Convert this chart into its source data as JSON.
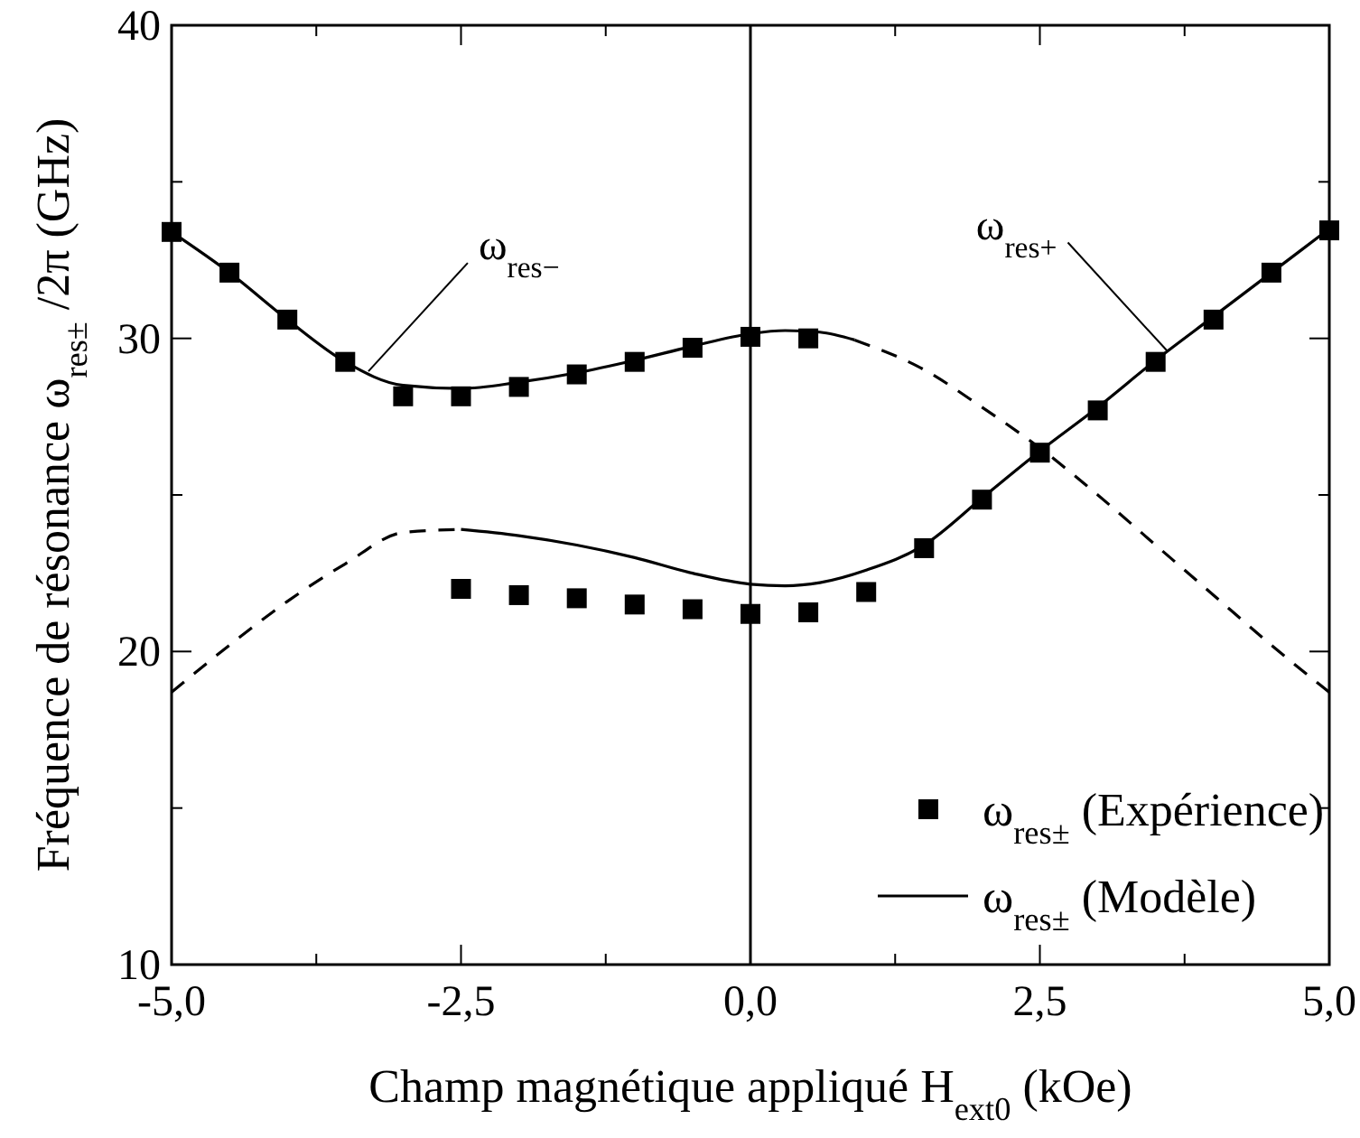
{
  "chart_data": {
    "type": "scatter",
    "xlabel": "Champ magnétique appliqué H$_{ext0}$ (kOe)",
    "ylabel": "Fréquence de résonance ω$_{res±}$ /2π (GHz)",
    "xlim": [
      -5,
      5
    ],
    "ylim": [
      10,
      40
    ],
    "xticks": [
      {
        "value": -5,
        "label": "-5,0"
      },
      {
        "value": -3.75,
        "label": null
      },
      {
        "value": -2.5,
        "label": "-2,5"
      },
      {
        "value": -1.25,
        "label": null
      },
      {
        "value": 0,
        "label": "0,0"
      },
      {
        "value": 1.25,
        "label": null
      },
      {
        "value": 2.5,
        "label": "2,5"
      },
      {
        "value": 3.75,
        "label": null
      },
      {
        "value": 5,
        "label": "5,0"
      }
    ],
    "yticks": [
      10,
      {
        "value": 15,
        "label": null
      },
      20,
      {
        "value": 25,
        "label": null
      },
      30,
      {
        "value": 35,
        "label": null
      },
      40
    ],
    "grid": false,
    "legend": "bottom right",
    "marker": "square",
    "ref_lines": [
      {
        "axis": "x",
        "value": 0,
        "color": "#000000"
      }
    ],
    "annotations": [
      {
        "text": "ω$_{res−}$",
        "x": -3.3,
        "y": 28.95
      },
      {
        "text": "ω$_{res+}$",
        "x": 3.6,
        "y": 29.6
      }
    ],
    "series": [
      {
        "name": "ω$_{res±}$ (Expérience)",
        "color": "#000000",
        "x": [
          -5,
          -4.5,
          -4,
          -3.5,
          -3,
          -2.5,
          -2,
          -1.5,
          -1,
          -0.5,
          0,
          0.5,
          -2.5,
          -2,
          -1.5,
          -1,
          -0.5,
          0,
          0.5,
          1,
          1.5,
          2,
          2.5,
          3,
          3.5,
          4,
          4.5,
          5
        ],
        "values": [
          33.4,
          32.1,
          30.6,
          29.25,
          28.15,
          28.15,
          28.45,
          28.85,
          29.25,
          29.7,
          30.05,
          30.0,
          22.0,
          21.8,
          21.7,
          21.5,
          21.35,
          21.2,
          21.25,
          21.9,
          23.3,
          24.85,
          26.35,
          27.7,
          29.25,
          30.6,
          32.1,
          33.45
        ]
      },
      {
        "name": "ω$_{res±}$ (Modèle)",
        "type": "line",
        "color": "#000000",
        "marker": "none",
        "line_style": "solid",
        "x": [
          -5,
          -4.5,
          -4,
          -3.5,
          -3,
          -2.5,
          -2,
          -1.5,
          -1,
          -0.5,
          0,
          0.3,
          0.6,
          0.9
        ],
        "values": [
          33.4,
          32.1,
          30.6,
          29.25,
          28.5,
          28.4,
          28.6,
          28.9,
          29.3,
          29.75,
          30.15,
          30.25,
          30.2,
          29.95
        ]
      },
      {
        "type": "line",
        "color": "#000000",
        "marker": "none",
        "line_style": "solid",
        "x": [
          -2.5,
          -2,
          -1.5,
          -1,
          -0.5,
          0,
          0.3,
          0.6,
          1,
          1.5,
          2,
          2.5,
          3,
          3.5,
          4,
          4.5,
          5
        ],
        "values": [
          23.9,
          23.7,
          23.4,
          23.0,
          22.5,
          22.15,
          22.1,
          22.2,
          22.6,
          23.4,
          24.9,
          26.4,
          27.8,
          29.3,
          30.7,
          32.1,
          33.5
        ]
      },
      {
        "type": "line",
        "color": "#000000",
        "marker": "none",
        "line_style": "dashed",
        "x": [
          0.9,
          1.5,
          2,
          2.5,
          3,
          3.5,
          4,
          4.5,
          5
        ],
        "values": [
          29.95,
          29.0,
          27.8,
          26.5,
          25.0,
          23.4,
          21.8,
          20.2,
          18.7
        ]
      },
      {
        "type": "line",
        "color": "#000000",
        "marker": "none",
        "line_style": "dashed",
        "x": [
          -5,
          -4.5,
          -4,
          -3.5,
          -3,
          -2.5
        ],
        "values": [
          18.7,
          20.2,
          21.6,
          22.8,
          23.8,
          23.9
        ]
      }
    ]
  }
}
